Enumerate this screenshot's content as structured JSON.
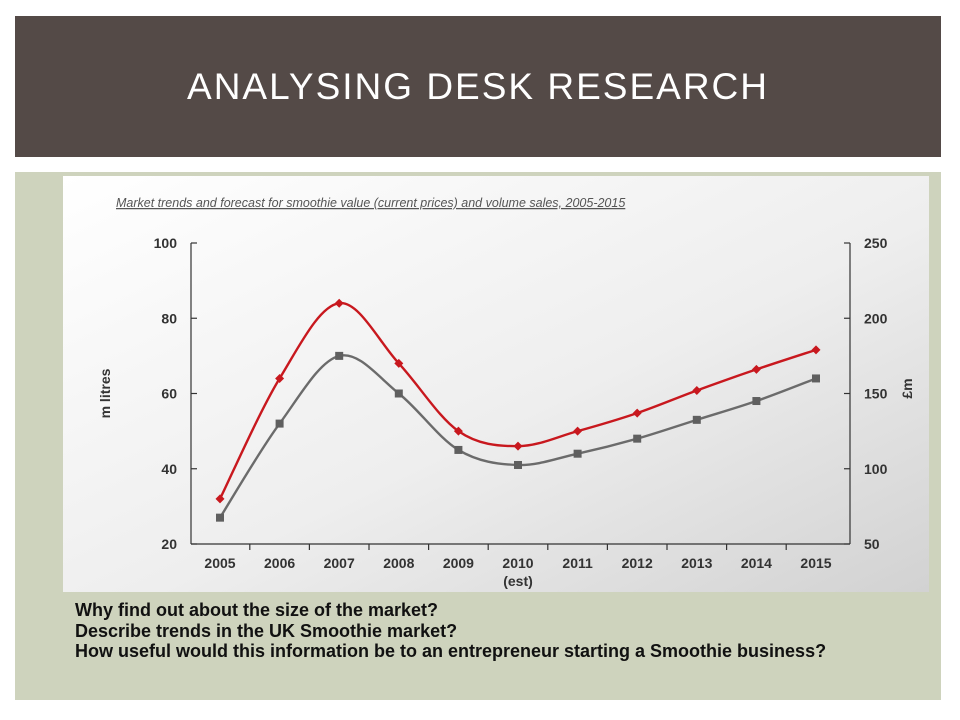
{
  "slide": {
    "title": "ANALYSING DESK RESEARCH",
    "questions": [
      "Why find out about the size of the market?",
      "Describe trends in the UK Smoothie market?",
      "How useful would this information be to an entrepreneur starting a Smoothie business?"
    ]
  },
  "colors": {
    "header_bg": "#544a47",
    "content_bg": "#ced3bd",
    "value_series": "#c8181e",
    "volume_series": "#6b6b6b"
  },
  "chart_data": {
    "type": "line",
    "title": "Market trends and forecast for smoothie value (current prices) and volume sales, 2005-2015",
    "categories": [
      "2005",
      "2006",
      "2007",
      "2008",
      "2009",
      "2010",
      "2011",
      "2012",
      "2013",
      "2014",
      "2015"
    ],
    "category_sublabels": [
      "",
      "",
      "",
      "",
      "",
      "(est)",
      "",
      "",
      "",
      "",
      ""
    ],
    "left_axis": {
      "label": "m litres",
      "ylim": [
        20,
        100
      ],
      "ticks": [
        "20",
        "40",
        "60",
        "80",
        "100"
      ]
    },
    "right_axis": {
      "label": "£m",
      "ylim": [
        50,
        250
      ],
      "ticks": [
        "50",
        "100",
        "150",
        "200",
        "250"
      ]
    },
    "series": [
      {
        "axis": "right",
        "marker": "diamond",
        "smooth": true,
        "values": [
          80,
          160,
          210,
          170,
          125,
          115,
          125,
          137,
          152,
          166,
          179
        ]
      },
      {
        "axis": "left",
        "marker": "square",
        "smooth": true,
        "values": [
          27,
          52,
          70,
          60,
          45,
          41,
          44,
          48,
          53,
          58,
          64
        ]
      }
    ],
    "grid": false,
    "legend": "none"
  }
}
